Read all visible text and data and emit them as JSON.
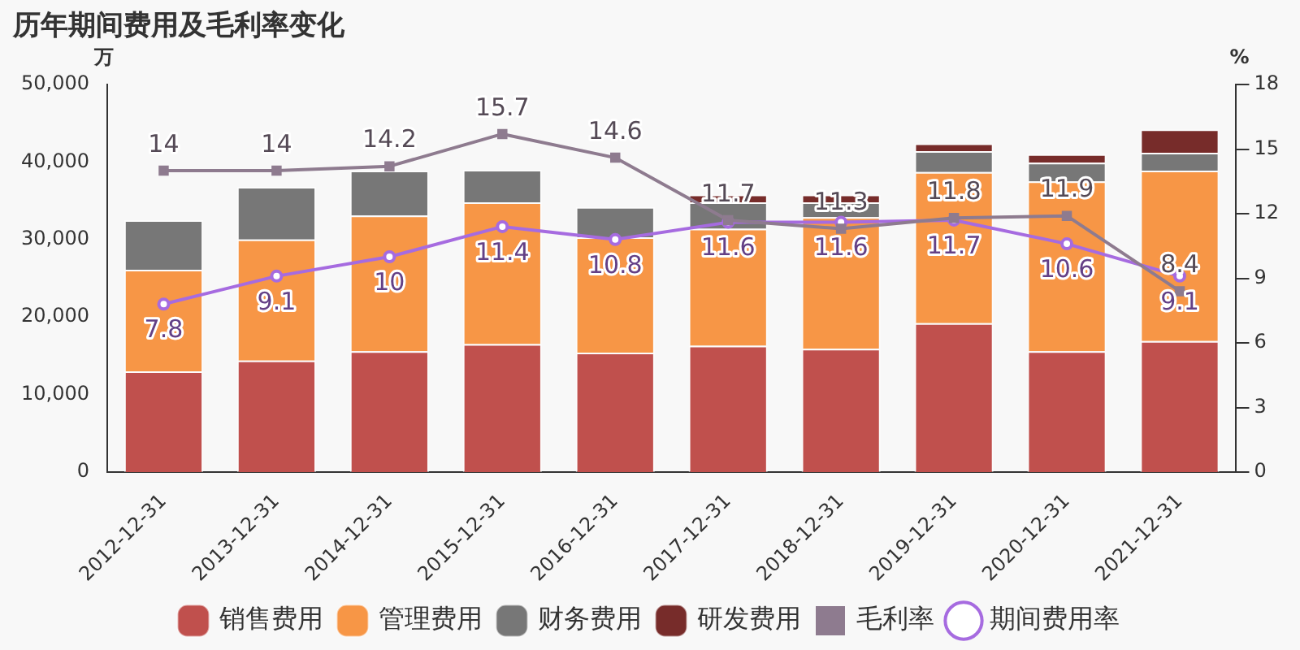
{
  "chart_data": {
    "type": "bar",
    "title": "历年期间费用及毛利率变化",
    "ylabel": "万",
    "y2label": "%",
    "stacked": true,
    "grid": false,
    "legend": "bottom",
    "categories": [
      "2012-12-31",
      "2013-12-31",
      "2014-12-31",
      "2015-12-31",
      "2016-12-31",
      "2017-12-31",
      "2018-12-31",
      "2019-12-31",
      "2020-12-31",
      "2021-12-31"
    ],
    "ylim": [
      0,
      50000
    ],
    "yticks": [
      {
        "value": 0,
        "label": "0"
      },
      {
        "value": 10000,
        "label": "10,000"
      },
      {
        "value": 20000,
        "label": "20,000"
      },
      {
        "value": 30000,
        "label": "30,000"
      },
      {
        "value": 40000,
        "label": "40,000"
      },
      {
        "value": 50000,
        "label": "50,000"
      }
    ],
    "y2lim": [
      0,
      18
    ],
    "y2ticks": [
      0,
      3,
      6,
      9,
      12,
      15,
      18
    ],
    "series": [
      {
        "name": "销售费用",
        "color": "#c0504d",
        "values": [
          13000,
          14400,
          15600,
          16500,
          15400,
          16300,
          15900,
          19200,
          15600,
          16900
        ]
      },
      {
        "name": "管理费用",
        "color": "#f79646",
        "values": [
          13100,
          15600,
          17500,
          18300,
          14900,
          15100,
          17000,
          19500,
          21900,
          22000
        ]
      },
      {
        "name": "财务费用",
        "color": "#777777",
        "values": [
          6400,
          6800,
          5800,
          4200,
          3900,
          3400,
          1900,
          2700,
          2400,
          2300
        ]
      },
      {
        "name": "研发费用",
        "color": "#772c2a",
        "values": [
          null,
          null,
          null,
          null,
          null,
          1000,
          1000,
          1000,
          1100,
          3000
        ]
      },
      {
        "name": "毛利率",
        "type": "line",
        "axis": "y2",
        "marker": "square",
        "color": "#8e7b8f",
        "values": [
          14,
          14,
          14.2,
          15.7,
          14.6,
          11.7,
          11.3,
          11.8,
          11.9,
          8.4
        ],
        "value_labels": [
          "14",
          "14",
          "14.2",
          "15.7",
          "14.6",
          "11.7",
          "11.3",
          "11.8",
          "11.9",
          "8.4"
        ]
      },
      {
        "name": "期间费用率",
        "type": "line",
        "axis": "y2",
        "marker": "circle",
        "color": "#a66be0",
        "values": [
          7.8,
          9.1,
          10,
          11.4,
          10.8,
          11.6,
          11.6,
          11.7,
          10.6,
          9.1
        ],
        "value_labels": [
          "7.8",
          "9.1",
          "10",
          "11.4",
          "10.8",
          "11.6",
          "11.6",
          "11.7",
          "10.6",
          "9.1"
        ]
      }
    ]
  }
}
